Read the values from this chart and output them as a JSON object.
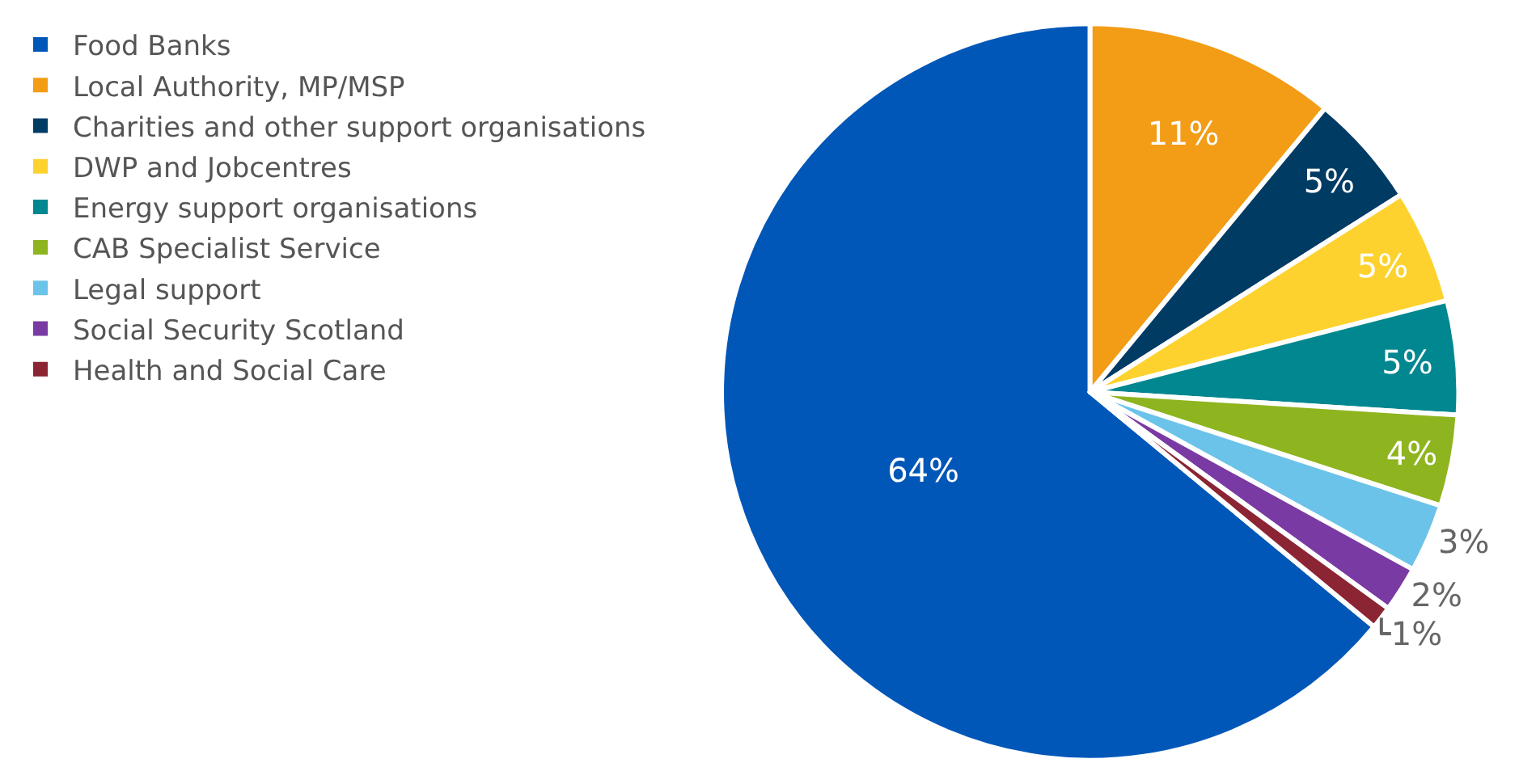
{
  "chart_data": {
    "type": "pie",
    "categories": [
      "Food Banks",
      "Local Authority, MP/MSP",
      "Charities and other support organisations",
      "DWP and Jobcentres",
      "Energy support organisations",
      "CAB Specialist Service",
      "Legal support",
      "Social Security Scotland",
      "Health and Social Care"
    ],
    "values": [
      64,
      11,
      5,
      5,
      5,
      4,
      3,
      2,
      1
    ],
    "colors": [
      "#0057b8",
      "#f39c16",
      "#003b64",
      "#fdd22e",
      "#00878f",
      "#8eb51f",
      "#6cc3ea",
      "#7a3aa3",
      "#8b2433"
    ],
    "value_labels": [
      "64%",
      "11%",
      "5%",
      "5%",
      "5%",
      "4%",
      "3%",
      "2%",
      "1%"
    ],
    "legend": "left"
  }
}
